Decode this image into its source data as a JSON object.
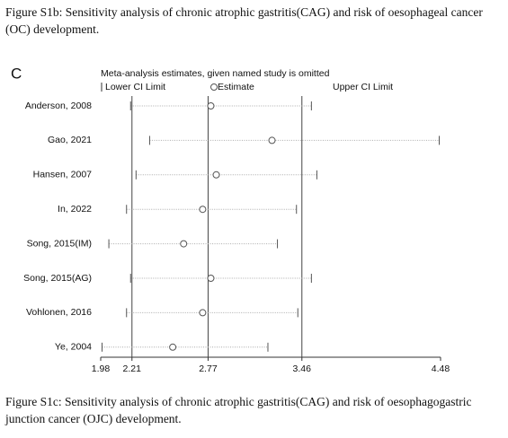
{
  "captions": {
    "top": "Figure S1b: Sensitivity analysis of chronic atrophic gastritis(CAG) and risk of oesophageal cancer (OC) development.",
    "bottom": "Figure S1c: Sensitivity analysis of chronic atrophic gastritis(CAG) and risk of oesophagogastric junction cancer (OJC) development."
  },
  "chart_data": {
    "type": "sensitivity",
    "panel_label": "C",
    "title": "Meta-analysis estimates, given named study is omitted",
    "categories": [
      "Anderson, 2008",
      "Gao, 2021",
      "Hansen, 2007",
      "In, 2022",
      "Song, 2015(IM)",
      "Song, 2015(AG)",
      "Vohlonen, 2016",
      "Ye, 2004"
    ],
    "series": [
      {
        "name": "Lower CI Limit",
        "values": [
          2.2,
          2.34,
          2.24,
          2.17,
          2.04,
          2.2,
          2.17,
          1.99
        ]
      },
      {
        "name": "Estimate",
        "values": [
          2.79,
          3.24,
          2.83,
          2.73,
          2.59,
          2.79,
          2.73,
          2.51
        ]
      },
      {
        "name": "Upper CI Limit",
        "values": [
          3.53,
          4.47,
          3.57,
          3.42,
          3.28,
          3.53,
          3.43,
          3.21
        ]
      }
    ],
    "reference_lines": [
      2.21,
      2.77,
      3.46
    ],
    "xlim": [
      1.98,
      4.48
    ],
    "xticks": [
      1.98,
      2.21,
      2.77,
      3.46,
      4.48
    ]
  }
}
